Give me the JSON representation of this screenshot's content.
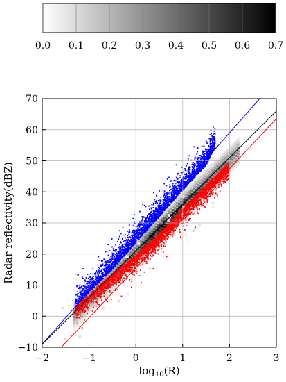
{
  "chart_data": [
    {
      "type": "colorbar",
      "orientation": "horizontal",
      "range": [
        0.0,
        0.7
      ],
      "tick_labels": [
        "0.0",
        "0.1",
        "0.2",
        "0.3",
        "0.4",
        "0.5",
        "0.6",
        "0.7"
      ],
      "tick_values": [
        0.0,
        0.1,
        0.2,
        0.3,
        0.4,
        0.5,
        0.6,
        0.7
      ],
      "colormap": "white-to-black"
    },
    {
      "type": "scatter",
      "xlabel": "log10(R)",
      "xlabel_main": "log",
      "xlabel_sub": "10",
      "xlabel_tail": "(R)",
      "ylabel": "Radar reflectivity(dBZ)",
      "xlim": [
        -2,
        3
      ],
      "ylim": [
        -10,
        70
      ],
      "x_tick_values": [
        -2,
        -1,
        0,
        1,
        2,
        3
      ],
      "x_tick_labels": [
        "−2",
        "−1",
        "0",
        "1",
        "2",
        "3"
      ],
      "y_tick_values": [
        -10,
        0,
        10,
        20,
        30,
        40,
        50,
        60,
        70
      ],
      "y_tick_labels": [
        "−10",
        "0",
        "10",
        "20",
        "30",
        "40",
        "50",
        "60",
        "70"
      ],
      "grid": true,
      "density_background": {
        "colormap": "white-to-black",
        "centerline": {
          "slope": 15.0,
          "intercept": 21.0
        },
        "x_range": [
          -1.3,
          2.2
        ]
      },
      "series": [
        {
          "color": "#0000ff",
          "points": [
            [
              -1.3,
              3.5
            ],
            [
              -1.0,
              9.0
            ],
            [
              -0.5,
              16.5
            ],
            [
              0.0,
              25.0
            ],
            [
              0.5,
              33.5
            ],
            [
              1.0,
              42.0
            ],
            [
              1.5,
              50.0
            ],
            [
              1.7,
              56.0
            ]
          ]
        },
        {
          "color": "#ff0000",
          "points": [
            [
              -1.3,
              1.0
            ],
            [
              -1.0,
              5.5
            ],
            [
              -0.5,
              12.0
            ],
            [
              0.0,
              18.0
            ],
            [
              0.5,
              25.0
            ],
            [
              1.0,
              33.0
            ],
            [
              1.5,
              40.5
            ],
            [
              2.0,
              48.0
            ]
          ]
        }
      ],
      "lines": [
        {
          "color": "#0000ff",
          "slope": 17.0,
          "intercept": 25.0
        },
        {
          "color": "#000000",
          "slope": 15.0,
          "intercept": 21.0
        },
        {
          "color": "#ff0000",
          "slope": 16.0,
          "intercept": 15.5
        }
      ]
    }
  ]
}
